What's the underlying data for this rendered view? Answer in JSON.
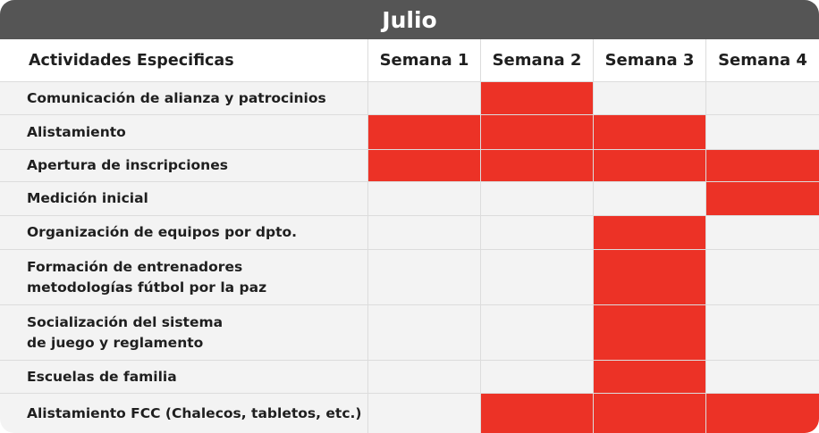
{
  "title": "Julio",
  "colors": {
    "header_bg": "#555555",
    "active": "#ec3226",
    "inactive": "#f3f3f3"
  },
  "table": {
    "label_header": "Actividades Especificas",
    "weeks": [
      "Semana 1",
      "Semana 2",
      "Semana 3",
      "Semana 4"
    ],
    "rows": [
      {
        "label": "Comunicación de alianza y patrocinios",
        "active": [
          false,
          true,
          false,
          false
        ]
      },
      {
        "label": "Alistamiento",
        "active": [
          true,
          true,
          true,
          false
        ]
      },
      {
        "label": "Apertura de inscripciones",
        "active": [
          true,
          true,
          true,
          true
        ]
      },
      {
        "label": "Medición inicial",
        "active": [
          false,
          false,
          false,
          true
        ]
      },
      {
        "label": "Organización de equipos por dpto.",
        "active": [
          false,
          false,
          true,
          false
        ]
      },
      {
        "label": "Formación de entrenadores\nmetodologías fútbol por la paz",
        "active": [
          false,
          false,
          true,
          false
        ]
      },
      {
        "label": "Socialización del sistema\nde juego y reglamento",
        "active": [
          false,
          false,
          true,
          false
        ]
      },
      {
        "label": "Escuelas de familia",
        "active": [
          false,
          false,
          true,
          false
        ]
      },
      {
        "label": "Alistamiento FCC (Chalecos, tabletos, etc.)",
        "active": [
          false,
          true,
          true,
          true
        ]
      }
    ]
  }
}
